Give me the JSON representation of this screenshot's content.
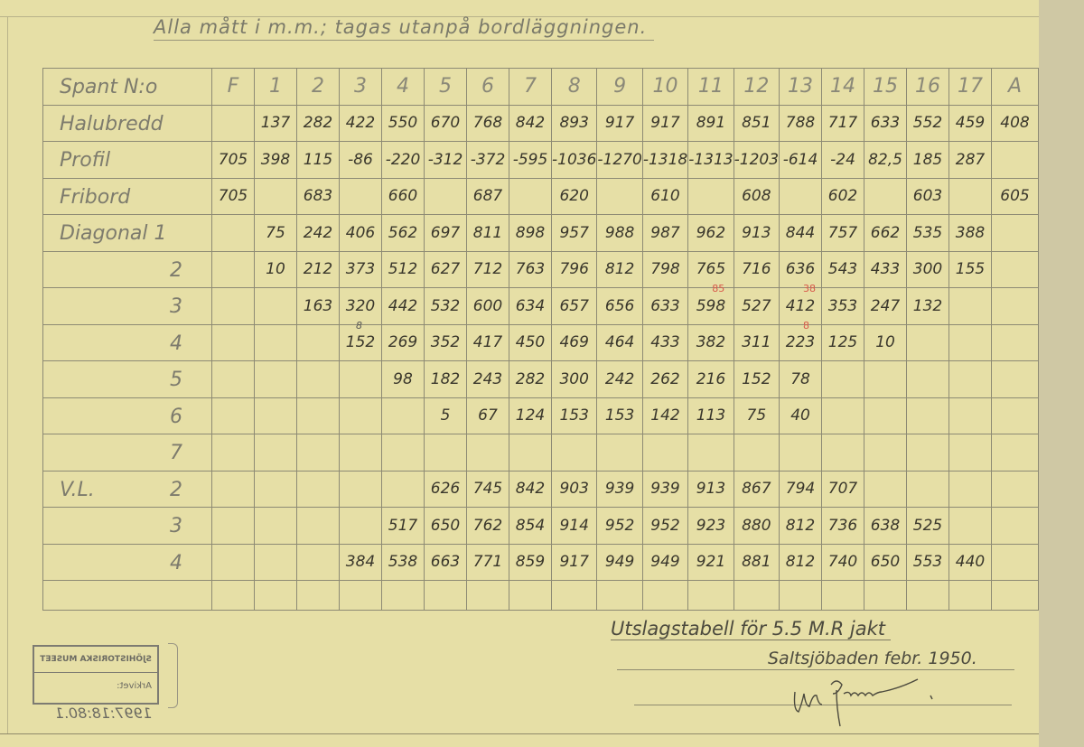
{
  "header_note": "Alla mått i m.m.; tagas utanpå bordläggningen.",
  "table": {
    "header_label": "Spant N:o",
    "columns": [
      "F",
      "1",
      "2",
      "3",
      "4",
      "5",
      "6",
      "7",
      "8",
      "9",
      "10",
      "11",
      "12",
      "13",
      "14",
      "15",
      "16",
      "17",
      "A"
    ],
    "rows": [
      {
        "label": "Halubredd",
        "sub": "",
        "values": [
          "",
          "137",
          "282",
          "422",
          "550",
          "670",
          "768",
          "842",
          "893",
          "917",
          "917",
          "891",
          "851",
          "788",
          "717",
          "633",
          "552",
          "459",
          "408"
        ]
      },
      {
        "label": "Profil",
        "sub": "",
        "values": [
          "705",
          "398",
          "115",
          "-86",
          "-220",
          "-312",
          "-372",
          "-595",
          "-1036",
          "-1270",
          "-1318",
          "-1313",
          "-1203",
          "-614",
          "-24",
          "82,5",
          "185",
          "287",
          ""
        ]
      },
      {
        "label": "Fribord",
        "sub": "",
        "values": [
          "705",
          "",
          "683",
          "",
          "660",
          "",
          "687",
          "",
          "620",
          "",
          "610",
          "",
          "608",
          "",
          "602",
          "",
          "603",
          "",
          "605"
        ]
      },
      {
        "label": "Diagonal 1",
        "sub": "",
        "values": [
          "",
          "75",
          "242",
          "406",
          "562",
          "697",
          "811",
          "898",
          "957",
          "988",
          "987",
          "962",
          "913",
          "844",
          "757",
          "662",
          "535",
          "388",
          ""
        ]
      },
      {
        "label": "",
        "sub": "2",
        "values": [
          "",
          "10",
          "212",
          "373",
          "512",
          "627",
          "712",
          "763",
          "796",
          "812",
          "798",
          "765",
          "716",
          "636",
          "543",
          "433",
          "300",
          "155",
          ""
        ]
      },
      {
        "label": "",
        "sub": "3",
        "values": [
          "",
          "",
          "163",
          "320",
          "442",
          "532",
          "600",
          "634",
          "657",
          "656",
          "633",
          "598",
          "527",
          "412",
          "353",
          "247",
          "132",
          "",
          ""
        ]
      },
      {
        "label": "",
        "sub": "4",
        "values": [
          "",
          "",
          "",
          "152",
          "269",
          "352",
          "417",
          "450",
          "469",
          "464",
          "433",
          "382",
          "311",
          "223",
          "125",
          "10",
          "",
          "",
          ""
        ]
      },
      {
        "label": "",
        "sub": "5",
        "values": [
          "",
          "",
          "",
          "",
          "98",
          "182",
          "243",
          "282",
          "300",
          "242",
          "262",
          "216",
          "152",
          "78",
          "",
          "",
          "",
          "",
          ""
        ]
      },
      {
        "label": "",
        "sub": "6",
        "values": [
          "",
          "",
          "",
          "",
          "",
          "5",
          "67",
          "124",
          "153",
          "153",
          "142",
          "113",
          "75",
          "40",
          "",
          "",
          "",
          "",
          ""
        ]
      },
      {
        "label": "",
        "sub": "7",
        "values": [
          "",
          "",
          "",
          "",
          "",
          "",
          "",
          "",
          "",
          "",
          "",
          "",
          "",
          "",
          "",
          "",
          "",
          "",
          ""
        ]
      },
      {
        "label": "V.L.",
        "sub": "2",
        "values": [
          "",
          "",
          "",
          "",
          "",
          "626",
          "745",
          "842",
          "903",
          "939",
          "939",
          "913",
          "867",
          "794",
          "707",
          "",
          "",
          "",
          ""
        ]
      },
      {
        "label": "",
        "sub": "3",
        "values": [
          "",
          "",
          "",
          "",
          "517",
          "650",
          "762",
          "854",
          "914",
          "952",
          "952",
          "923",
          "880",
          "812",
          "736",
          "638",
          "525",
          "",
          ""
        ]
      },
      {
        "label": "",
        "sub": "4",
        "values": [
          "",
          "",
          "",
          "384",
          "538",
          "663",
          "771",
          "859",
          "917",
          "949",
          "949",
          "921",
          "881",
          "812",
          "740",
          "650",
          "553",
          "440",
          ""
        ]
      }
    ],
    "annotations": [
      {
        "row": 5,
        "col": 11,
        "text": "85",
        "color": "#d8584a"
      },
      {
        "row": 5,
        "col": 13,
        "text": "38",
        "color": "#d8584a"
      },
      {
        "row": 6,
        "col": 13,
        "text": "8",
        "color": "#d8584a"
      },
      {
        "row": 6,
        "col": 3,
        "text": "8",
        "color": "#555555"
      }
    ]
  },
  "footer": {
    "title": "Utslagstabell för 5.5 M.R jakt",
    "place_date": "Saltsjöbaden febr. 1950.",
    "signature": "signature"
  },
  "stamp": {
    "museum": "SJÖHISTORISKA MUSEET",
    "archive_label": "Arkivet:",
    "archive_no": "1997:18:80.1"
  },
  "colors": {
    "paper": "#e6dfa6",
    "ink": "#3a372c",
    "pencil": "#7d7b6d",
    "red_ink": "#d8584a"
  }
}
